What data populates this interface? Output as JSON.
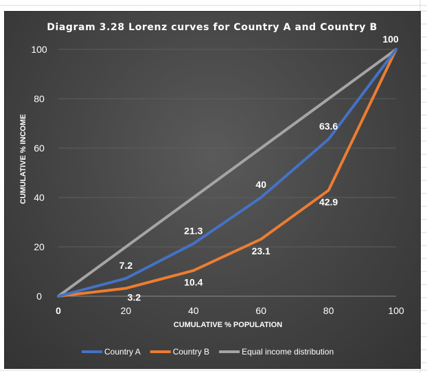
{
  "chart_data": {
    "type": "line",
    "title": "Diagram 3.28 Lorenz curves for Country A and Country B",
    "xlabel": "CUMULATIVE % POPULATION",
    "ylabel": "CUMULATIVE % INCOME",
    "x": [
      0,
      20,
      40,
      60,
      80,
      100
    ],
    "xlim": [
      0,
      100
    ],
    "ylim": [
      0,
      100
    ],
    "xticks": [
      "0",
      "20",
      "40",
      "60",
      "80",
      "100"
    ],
    "yticks": [
      "0",
      "20",
      "40",
      "60",
      "80",
      "100"
    ],
    "grid": true,
    "legend_position": "bottom",
    "series": [
      {
        "name": "Country A",
        "color": "#4472c4",
        "values": [
          0,
          7.2,
          21.3,
          40,
          63.6,
          100
        ],
        "labels": [
          "",
          "7.2",
          "21.3",
          "40",
          "63.6",
          "100"
        ]
      },
      {
        "name": "Country B",
        "color": "#ed7d31",
        "values": [
          0,
          3.2,
          10.4,
          23.1,
          42.9,
          100
        ],
        "labels": [
          "",
          "3.2",
          "10.4",
          "23.1",
          "42.9",
          ""
        ]
      },
      {
        "name": "Equal income distribution",
        "color": "#a5a5a5",
        "values": [
          0,
          20,
          40,
          60,
          80,
          100
        ],
        "labels": []
      }
    ]
  }
}
